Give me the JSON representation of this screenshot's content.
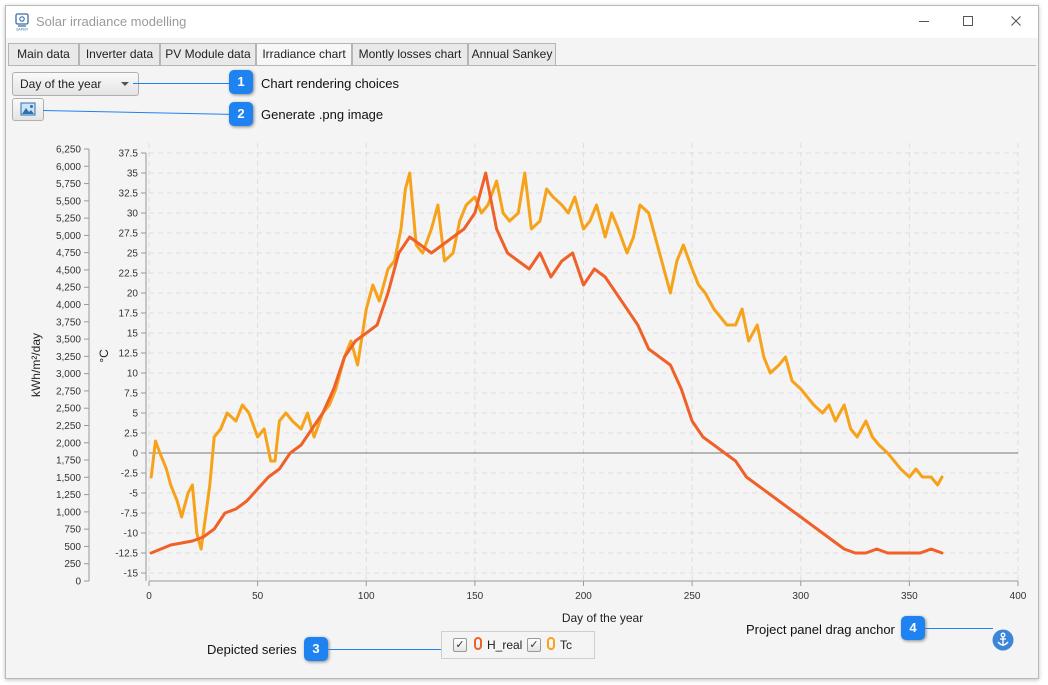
{
  "window": {
    "title": "Solar irradiance modelling"
  },
  "tabs": [
    {
      "label": "Main data"
    },
    {
      "label": "Inverter data"
    },
    {
      "label": "PV Module data"
    },
    {
      "label": "Irradiance chart"
    },
    {
      "label": "Montly losses chart"
    },
    {
      "label": "Annual Sankey"
    }
  ],
  "controls": {
    "render_choice": "Day of the year"
  },
  "callouts": [
    {
      "num": "1",
      "text": "Chart rendering choices"
    },
    {
      "num": "2",
      "text": "Generate .png image"
    },
    {
      "num": "3",
      "text": "Depicted series"
    },
    {
      "num": "4",
      "text": "Project panel drag anchor"
    }
  ],
  "icons": {
    "app": "solar-panel-icon",
    "image": "image-icon",
    "anchor": "anchor-icon"
  },
  "colors": {
    "H_real": "#f0612a",
    "Tc": "#f7a21b",
    "callout": "#1e82f0"
  },
  "chart_data": {
    "type": "line",
    "xlabel": "Day of the year",
    "ylabel_left": "kWh/m²/day",
    "ylabel_right": "°C",
    "xlim": [
      0,
      400
    ],
    "x_ticks": [
      "0",
      "50",
      "100",
      "150",
      "200",
      "250",
      "300",
      "350",
      "400"
    ],
    "y_left_lim": [
      0,
      6250
    ],
    "y_left_ticks": [
      "0",
      "250",
      "500",
      "750",
      "1,000",
      "1,250",
      "1,500",
      "1,750",
      "2,000",
      "2,250",
      "2,500",
      "2,750",
      "3,000",
      "3,250",
      "3,500",
      "3,750",
      "4,000",
      "4,250",
      "4,500",
      "4,750",
      "5,000",
      "5,250",
      "5,500",
      "5,750",
      "6,000",
      "6,250"
    ],
    "y_right_lim": [
      -15,
      37.5
    ],
    "y_right_ticks": [
      "-15",
      "-12.5",
      "-10",
      "-7.5",
      "-5",
      "-2.5",
      "0",
      "2.5",
      "5",
      "7.5",
      "10",
      "12.5",
      "15",
      "17.5",
      "20",
      "22.5",
      "25",
      "27.5",
      "30",
      "32.5",
      "35",
      "37.5"
    ],
    "grid": true,
    "legend": "bottom-center",
    "series": [
      {
        "name": "H_real",
        "axis": "right",
        "x": [
          1,
          10,
          20,
          25,
          30,
          35,
          40,
          45,
          50,
          55,
          60,
          65,
          70,
          75,
          80,
          85,
          90,
          95,
          100,
          105,
          110,
          115,
          120,
          125,
          130,
          135,
          140,
          145,
          150,
          155,
          160,
          165,
          170,
          175,
          180,
          185,
          190,
          195,
          200,
          205,
          210,
          215,
          220,
          225,
          230,
          235,
          240,
          245,
          250,
          255,
          260,
          265,
          270,
          275,
          280,
          285,
          290,
          295,
          300,
          305,
          310,
          315,
          320,
          325,
          330,
          335,
          340,
          345,
          350,
          355,
          360,
          365
        ],
        "y": [
          -12.5,
          -11.5,
          -11,
          -10.5,
          -9.5,
          -7.5,
          -7,
          -6,
          -4.5,
          -3,
          -2,
          0,
          1,
          3,
          5,
          8,
          12,
          14,
          15,
          16,
          20,
          25,
          27,
          26,
          25,
          26,
          27,
          28,
          30,
          35,
          28,
          25,
          24,
          23,
          25,
          22,
          24,
          25,
          21,
          23,
          22,
          20,
          18,
          16,
          13,
          12,
          11,
          8,
          4,
          2,
          1,
          0,
          -1,
          -3,
          -4,
          -5,
          -6,
          -7,
          -8,
          -9,
          -10,
          -11,
          -12,
          -12.5,
          -12.5,
          -12,
          -12.5,
          -12.5,
          -12.5,
          -12.5,
          -12,
          -12.5
        ]
      },
      {
        "name": "Tc",
        "axis": "right",
        "x": [
          1,
          3,
          5,
          8,
          10,
          13,
          15,
          18,
          20,
          22,
          24,
          26,
          28,
          30,
          33,
          36,
          40,
          43,
          46,
          50,
          53,
          56,
          58,
          60,
          63,
          66,
          70,
          73,
          76,
          80,
          83,
          86,
          90,
          93,
          96,
          100,
          103,
          106,
          110,
          113,
          116,
          118,
          120,
          123,
          126,
          130,
          133,
          136,
          140,
          143,
          146,
          150,
          153,
          156,
          160,
          163,
          166,
          170,
          173,
          176,
          180,
          183,
          186,
          190,
          193,
          196,
          200,
          203,
          206,
          210,
          213,
          216,
          220,
          223,
          226,
          230,
          233,
          236,
          240,
          243,
          246,
          250,
          253,
          256,
          260,
          263,
          266,
          270,
          273,
          276,
          280,
          283,
          286,
          290,
          293,
          296,
          300,
          303,
          306,
          310,
          313,
          316,
          320,
          323,
          326,
          330,
          333,
          336,
          340,
          343,
          346,
          350,
          353,
          356,
          360,
          363,
          365
        ],
        "y": [
          -3,
          1.5,
          0,
          -2,
          -4,
          -6,
          -8,
          -5,
          -4,
          -10,
          -12,
          -8,
          -4,
          2,
          3,
          5,
          4,
          6,
          5,
          2,
          3,
          -1,
          -1,
          4,
          5,
          4,
          3,
          5,
          2,
          5,
          6,
          8,
          12,
          14,
          11,
          18,
          21,
          19,
          23,
          24,
          28,
          33,
          35,
          26,
          25,
          28,
          31,
          24,
          25,
          29,
          31,
          32,
          30,
          31,
          34,
          30,
          29,
          30,
          35,
          28,
          29,
          33,
          32,
          31,
          30,
          32,
          28,
          29,
          31,
          27,
          30,
          28,
          25,
          27,
          31,
          30,
          27,
          24,
          20,
          24,
          26,
          23,
          21,
          20,
          18,
          17,
          16,
          16,
          18,
          14,
          16,
          12,
          10,
          11,
          12,
          9,
          8,
          7,
          6,
          5,
          6,
          4,
          6,
          3,
          2,
          4,
          2,
          1,
          0,
          -1,
          -2,
          -3,
          -2,
          -3,
          -3,
          -4,
          -3
        ]
      }
    ]
  }
}
